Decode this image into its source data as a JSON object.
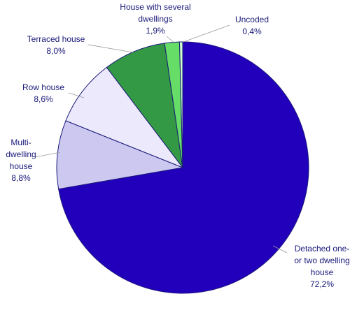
{
  "chart_data": {
    "type": "pie",
    "categories": [
      "Detached one-\nor two dwelling\nhouse",
      "Multi-\ndwelling\nhouse",
      "Row house",
      "Terraced house",
      "House with several\ndwellings",
      "Uncoded"
    ],
    "values": [
      72.2,
      8.8,
      8.6,
      8.0,
      1.9,
      0.4
    ],
    "value_labels": [
      "72,2%",
      "8,8%",
      "8,6%",
      "8,0%",
      "1,9%",
      "0,4%"
    ],
    "colors": [
      "#2200bb",
      "#ccc8f0",
      "#ebe9fb",
      "#339944",
      "#66dd66",
      "#ccffcc"
    ]
  }
}
